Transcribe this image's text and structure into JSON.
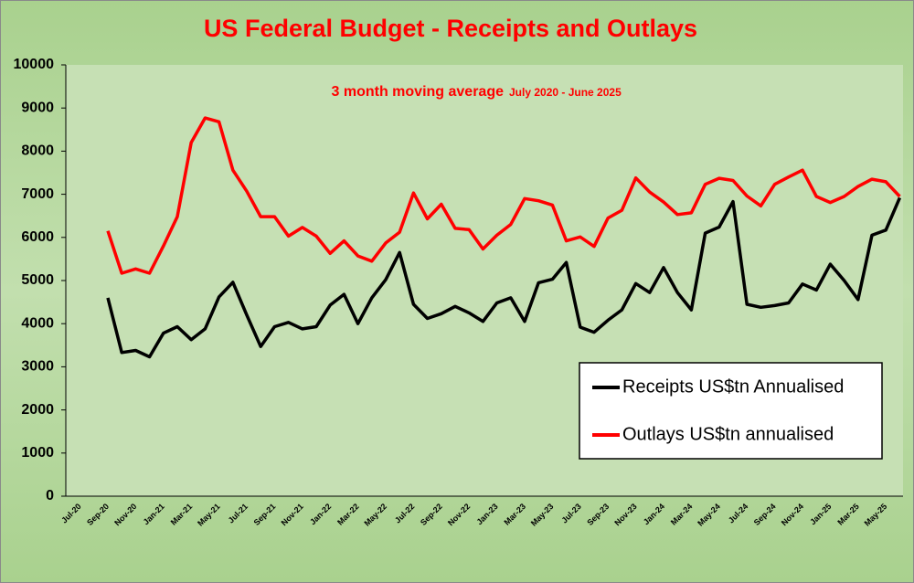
{
  "chart_data": {
    "type": "line",
    "title": "US Federal Budget - Receipts and Outlays",
    "subtitle": "3 month moving average",
    "subtitle_range": "July 2020 - June 2025",
    "categories": [
      "Jul-20",
      null,
      "Sep-20",
      null,
      "Nov-20",
      null,
      "Jan-21",
      null,
      "Mar-21",
      null,
      "May-21",
      null,
      "Jul-21",
      null,
      "Sep-21",
      null,
      "Nov-21",
      null,
      "Jan-22",
      null,
      "Mar-22",
      null,
      "May-22",
      null,
      "Jul-22",
      null,
      "Sep-22",
      null,
      "Nov-22",
      null,
      "Jan-23",
      null,
      "Mar-23",
      null,
      "May-23",
      null,
      "Jul-23",
      null,
      "Sep-23",
      null,
      "Nov-23",
      null,
      "Jan-24",
      null,
      "Mar-24",
      null,
      "May-24",
      null,
      "Jul-24",
      null,
      "Sep-24",
      null,
      "Nov-24",
      null,
      "Jan-25",
      null,
      "Mar-25",
      null,
      "May-25",
      null
    ],
    "series": [
      {
        "name": "Receipts US$tn Annualised",
        "color": "#000000",
        "values": [
          null,
          null,
          4600,
          3330,
          3380,
          3230,
          3780,
          3930,
          3630,
          3880,
          4620,
          4960,
          4200,
          3470,
          3930,
          4030,
          3880,
          3930,
          4430,
          4680,
          4000,
          4600,
          5020,
          5650,
          4450,
          4120,
          4230,
          4400,
          4250,
          4050,
          4480,
          4600,
          4050,
          4950,
          5030,
          5420,
          3920,
          3800,
          4080,
          4320,
          4930,
          4720,
          5300,
          4720,
          4320,
          6100,
          6240,
          6830,
          4450,
          4380,
          4420,
          4480,
          4920,
          4780,
          5380,
          5000,
          4560,
          6050,
          6170,
          6920
        ]
      },
      {
        "name": "Outlays US$tn annualised",
        "color": "#ff0000",
        "values": [
          null,
          null,
          6150,
          5170,
          5270,
          5170,
          5800,
          6480,
          8200,
          8770,
          8680,
          7560,
          7070,
          6480,
          6480,
          6030,
          6230,
          6030,
          5630,
          5920,
          5570,
          5450,
          5870,
          6120,
          7030,
          6430,
          6770,
          6210,
          6180,
          5730,
          6050,
          6300,
          6900,
          6850,
          6750,
          5920,
          6010,
          5790,
          6450,
          6630,
          7380,
          7050,
          6820,
          6530,
          6570,
          7230,
          7370,
          7320,
          6960,
          6730,
          7230,
          7400,
          7560,
          6950,
          6810,
          6950,
          7180,
          7350,
          7290,
          6950
        ]
      }
    ],
    "ylim": [
      0,
      10000
    ],
    "yticks": [
      0,
      1000,
      2000,
      3000,
      4000,
      5000,
      6000,
      7000,
      8000,
      9000,
      10000
    ],
    "legend": "lower right",
    "grid": false
  }
}
